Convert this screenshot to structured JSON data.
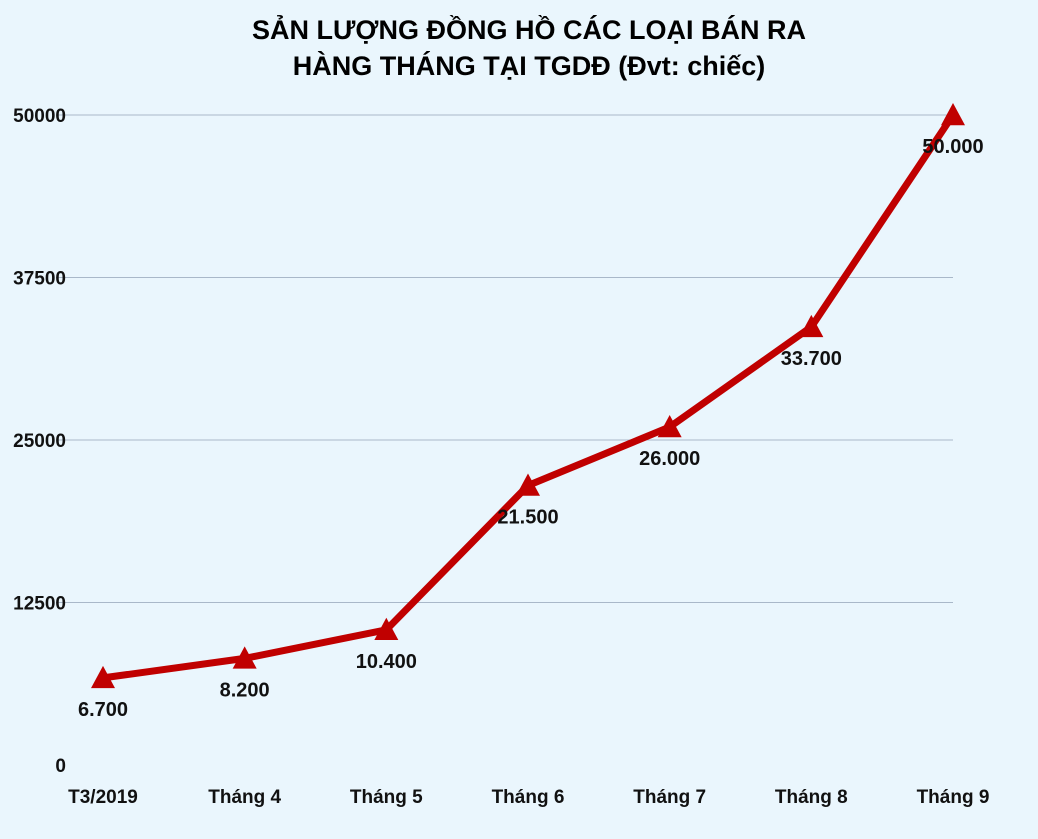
{
  "chart_data": {
    "type": "line",
    "title_line1": "SẢN LƯỢNG ĐỒNG HỒ CÁC LOẠI BÁN RA",
    "title_line2": "HÀNG THÁNG TẠI TGDĐ (Đvt: chiếc)",
    "categories": [
      "T3/2019",
      "Tháng 4",
      "Tháng 5",
      "Tháng 6",
      "Tháng 7",
      "Tháng 8",
      "Tháng 9"
    ],
    "values": [
      6700,
      8200,
      10400,
      21500,
      26000,
      33700,
      50000
    ],
    "data_labels": [
      "6.700",
      "8.200",
      "10.400",
      "21.500",
      "26.000",
      "33.700",
      "50.000"
    ],
    "y_ticks": [
      0,
      12500,
      25000,
      37500,
      50000
    ],
    "ylim": [
      0,
      50000
    ],
    "grid": true,
    "marker": "triangle",
    "line_color": "#c00000",
    "grid_color": "#a9b8c9",
    "background": "#eaf6fd"
  }
}
